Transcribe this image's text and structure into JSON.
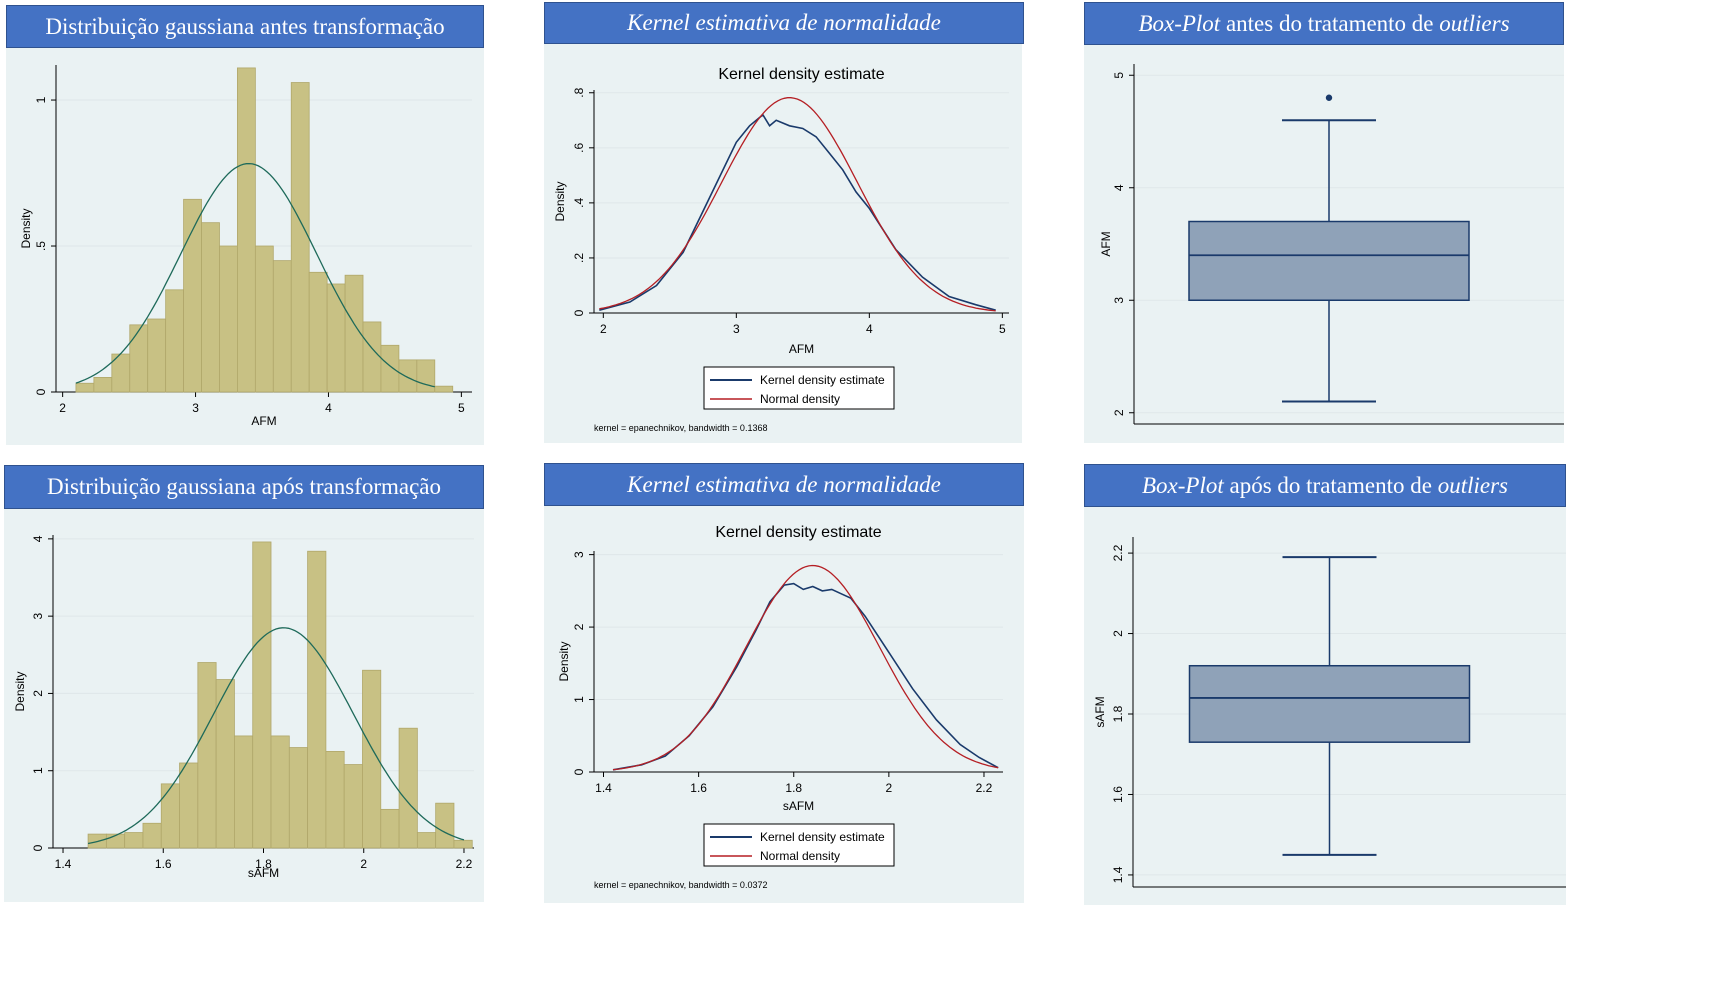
{
  "colors": {
    "banner": "#4472c4",
    "plot_bg": "#eaf2f3",
    "bar_fill": "#c8c184",
    "bar_stroke": "#b0a76a",
    "normal_green": "#1e6a5a",
    "kernel_navy": "#1a3a6b",
    "normal_red": "#b51f24",
    "box_fill": "#8fa2b8",
    "box_line": "#1a3a6b",
    "grid": "#dfe7e9"
  },
  "panels": {
    "hist_before": {
      "title": "Distribuição gaussiana antes transformação"
    },
    "kernel_before": {
      "title_italic": "Kernel estimativa de normalidade"
    },
    "box_before": {
      "title_italic_1": "Box-Plot",
      "title_mid": " antes do tratamento de ",
      "title_italic_2": "outliers"
    },
    "hist_after": {
      "title": "Distribuição gaussiana após transformação"
    },
    "kernel_after": {
      "title_italic": "Kernel estimativa de normalidade"
    },
    "box_after": {
      "title_italic_1": "Box-Plot",
      "title_mid": " após do tratamento de ",
      "title_italic_2": "outliers"
    }
  },
  "chart_data": [
    {
      "id": "hist_before",
      "type": "bar",
      "xlabel": "AFM",
      "ylabel": "Density",
      "xlim": [
        1.95,
        5.08
      ],
      "ylim": [
        0,
        1.12
      ],
      "xticks": [
        {
          "v": 2,
          "label": "2"
        },
        {
          "v": 3,
          "label": "3"
        },
        {
          "v": 4,
          "label": "4"
        },
        {
          "v": 5,
          "label": "5"
        }
      ],
      "yticks": [
        {
          "v": 0,
          "label": "0"
        },
        {
          "v": 0.5,
          "label": ".5"
        },
        {
          "v": 1,
          "label": "1"
        }
      ],
      "bin_start": 2.1,
      "bin_width": 0.135,
      "values": [
        0.03,
        0.05,
        0.13,
        0.23,
        0.25,
        0.35,
        0.66,
        0.58,
        0.5,
        1.11,
        0.5,
        0.45,
        1.06,
        0.41,
        0.37,
        0.4,
        0.24,
        0.16,
        0.11,
        0.11,
        0.02
      ],
      "normal": {
        "mean": 3.4,
        "sd": 0.51,
        "xmin": 2.1,
        "xmax": 4.8
      }
    },
    {
      "id": "kernel_before",
      "type": "line",
      "title": "Kernel density estimate",
      "xlabel": "AFM",
      "ylabel": "Density",
      "xlim": [
        1.93,
        5.05
      ],
      "ylim": [
        0,
        0.81
      ],
      "xticks": [
        {
          "v": 2,
          "label": "2"
        },
        {
          "v": 3,
          "label": "3"
        },
        {
          "v": 4,
          "label": "4"
        },
        {
          "v": 5,
          "label": "5"
        }
      ],
      "yticks": [
        {
          "v": 0,
          "label": "0"
        },
        {
          "v": 0.2,
          "label": ".2"
        },
        {
          "v": 0.4,
          "label": ".4"
        },
        {
          "v": 0.6,
          "label": ".6"
        },
        {
          "v": 0.8,
          "label": ".8"
        }
      ],
      "series": [
        {
          "name": "Kernel density estimate",
          "x": [
            1.97,
            2.2,
            2.4,
            2.6,
            2.8,
            3.0,
            3.1,
            3.2,
            3.25,
            3.3,
            3.4,
            3.5,
            3.6,
            3.7,
            3.8,
            3.9,
            4.0,
            4.2,
            4.4,
            4.6,
            4.8,
            4.95
          ],
          "y": [
            0.01,
            0.04,
            0.1,
            0.22,
            0.42,
            0.62,
            0.68,
            0.72,
            0.68,
            0.7,
            0.68,
            0.67,
            0.64,
            0.58,
            0.52,
            0.44,
            0.38,
            0.23,
            0.13,
            0.06,
            0.03,
            0.01
          ]
        },
        {
          "name": "Normal density",
          "normal": {
            "mean": 3.4,
            "sd": 0.51,
            "xmin": 1.97,
            "xmax": 4.95
          }
        }
      ],
      "legend": [
        "Kernel density estimate",
        "Normal density"
      ],
      "note": "kernel = epanechnikov, bandwidth = 0.1368"
    },
    {
      "id": "box_before",
      "type": "box",
      "ylabel": "AFM",
      "ylim": [
        1.9,
        5.1
      ],
      "yticks": [
        {
          "v": 2,
          "label": "2"
        },
        {
          "v": 3,
          "label": "3"
        },
        {
          "v": 4,
          "label": "4"
        },
        {
          "v": 5,
          "label": "5"
        }
      ],
      "whisker_low": 2.1,
      "q1": 3.0,
      "median": 3.4,
      "q3": 3.7,
      "whisker_high": 4.6,
      "outliers": [
        4.8
      ]
    },
    {
      "id": "hist_after",
      "type": "bar",
      "xlabel": "sAFM",
      "ylabel": "Density",
      "xlim": [
        1.38,
        2.22
      ],
      "ylim": [
        0,
        4.05
      ],
      "xticks": [
        {
          "v": 1.4,
          "label": "1.4"
        },
        {
          "v": 1.6,
          "label": "1.6"
        },
        {
          "v": 1.8,
          "label": "1.8"
        },
        {
          "v": 2,
          "label": "2"
        },
        {
          "v": 2.2,
          "label": "2.2"
        }
      ],
      "yticks": [
        {
          "v": 0,
          "label": "0"
        },
        {
          "v": 1,
          "label": "1"
        },
        {
          "v": 2,
          "label": "2"
        },
        {
          "v": 3,
          "label": "3"
        },
        {
          "v": 4,
          "label": "4"
        }
      ],
      "bin_start": 1.45,
      "bin_width": 0.0365,
      "values": [
        0.18,
        0.18,
        0.2,
        0.32,
        0.83,
        1.1,
        2.4,
        2.18,
        1.45,
        3.96,
        1.45,
        1.3,
        3.84,
        1.25,
        1.08,
        2.3,
        0.5,
        1.55,
        0.2,
        0.58,
        0.1
      ],
      "normal": {
        "mean": 1.84,
        "sd": 0.14,
        "xmin": 1.45,
        "xmax": 2.2
      }
    },
    {
      "id": "kernel_after",
      "type": "line",
      "title": "Kernel density estimate",
      "xlabel": "sAFM",
      "ylabel": "Density",
      "xlim": [
        1.38,
        2.24
      ],
      "ylim": [
        0,
        3.05
      ],
      "xticks": [
        {
          "v": 1.4,
          "label": "1.4"
        },
        {
          "v": 1.6,
          "label": "1.6"
        },
        {
          "v": 1.8,
          "label": "1.8"
        },
        {
          "v": 2,
          "label": "2"
        },
        {
          "v": 2.2,
          "label": "2.2"
        }
      ],
      "yticks": [
        {
          "v": 0,
          "label": "0"
        },
        {
          "v": 1,
          "label": "1"
        },
        {
          "v": 2,
          "label": "2"
        },
        {
          "v": 3,
          "label": "3"
        }
      ],
      "series": [
        {
          "name": "Kernel density estimate",
          "x": [
            1.42,
            1.48,
            1.53,
            1.58,
            1.63,
            1.68,
            1.72,
            1.75,
            1.78,
            1.8,
            1.82,
            1.84,
            1.86,
            1.88,
            1.9,
            1.92,
            1.95,
            2.0,
            2.05,
            2.1,
            2.15,
            2.19,
            2.23
          ],
          "y": [
            0.03,
            0.1,
            0.22,
            0.5,
            0.9,
            1.45,
            1.95,
            2.35,
            2.58,
            2.6,
            2.52,
            2.56,
            2.5,
            2.52,
            2.46,
            2.4,
            2.15,
            1.65,
            1.15,
            0.72,
            0.38,
            0.2,
            0.06
          ]
        },
        {
          "name": "Normal density",
          "normal": {
            "mean": 1.84,
            "sd": 0.14,
            "xmin": 1.42,
            "xmax": 2.23
          }
        }
      ],
      "legend": [
        "Kernel density estimate",
        "Normal density"
      ],
      "note": "kernel = epanechnikov, bandwidth = 0.0372"
    },
    {
      "id": "box_after",
      "type": "box",
      "ylabel": "sAFM",
      "ylim": [
        1.37,
        2.24
      ],
      "yticks": [
        {
          "v": 1.4,
          "label": "1.4"
        },
        {
          "v": 1.6,
          "label": "1.6"
        },
        {
          "v": 1.8,
          "label": "1.8"
        },
        {
          "v": 2,
          "label": "2"
        },
        {
          "v": 2.2,
          "label": "2.2"
        }
      ],
      "whisker_low": 1.45,
      "q1": 1.73,
      "median": 1.84,
      "q3": 1.92,
      "whisker_high": 2.19,
      "outliers": []
    }
  ]
}
